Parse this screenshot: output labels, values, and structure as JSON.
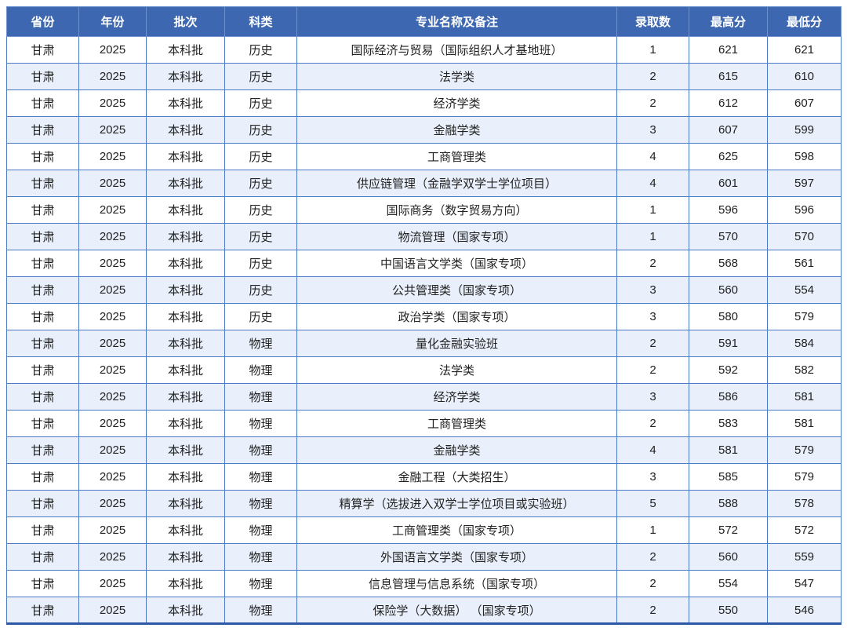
{
  "chart_data": {
    "type": "table",
    "title": "",
    "headers": [
      "省份",
      "年份",
      "批次",
      "科类",
      "专业名称及备注",
      "录取数",
      "最高分",
      "最低分"
    ],
    "rows": [
      [
        "甘肃",
        "2025",
        "本科批",
        "历史",
        "国际经济与贸易（国际组织人才基地班）",
        "1",
        "621",
        "621"
      ],
      [
        "甘肃",
        "2025",
        "本科批",
        "历史",
        "法学类",
        "2",
        "615",
        "610"
      ],
      [
        "甘肃",
        "2025",
        "本科批",
        "历史",
        "经济学类",
        "2",
        "612",
        "607"
      ],
      [
        "甘肃",
        "2025",
        "本科批",
        "历史",
        "金融学类",
        "3",
        "607",
        "599"
      ],
      [
        "甘肃",
        "2025",
        "本科批",
        "历史",
        "工商管理类",
        "4",
        "625",
        "598"
      ],
      [
        "甘肃",
        "2025",
        "本科批",
        "历史",
        "供应链管理（金融学双学士学位项目）",
        "4",
        "601",
        "597"
      ],
      [
        "甘肃",
        "2025",
        "本科批",
        "历史",
        "国际商务（数字贸易方向）",
        "1",
        "596",
        "596"
      ],
      [
        "甘肃",
        "2025",
        "本科批",
        "历史",
        "物流管理（国家专项）",
        "1",
        "570",
        "570"
      ],
      [
        "甘肃",
        "2025",
        "本科批",
        "历史",
        "中国语言文学类（国家专项）",
        "2",
        "568",
        "561"
      ],
      [
        "甘肃",
        "2025",
        "本科批",
        "历史",
        "公共管理类（国家专项）",
        "3",
        "560",
        "554"
      ],
      [
        "甘肃",
        "2025",
        "本科批",
        "历史",
        "政治学类（国家专项）",
        "3",
        "580",
        "579"
      ],
      [
        "甘肃",
        "2025",
        "本科批",
        "物理",
        "量化金融实验班",
        "2",
        "591",
        "584"
      ],
      [
        "甘肃",
        "2025",
        "本科批",
        "物理",
        "法学类",
        "2",
        "592",
        "582"
      ],
      [
        "甘肃",
        "2025",
        "本科批",
        "物理",
        "经济学类",
        "3",
        "586",
        "581"
      ],
      [
        "甘肃",
        "2025",
        "本科批",
        "物理",
        "工商管理类",
        "2",
        "583",
        "581"
      ],
      [
        "甘肃",
        "2025",
        "本科批",
        "物理",
        "金融学类",
        "4",
        "581",
        "579"
      ],
      [
        "甘肃",
        "2025",
        "本科批",
        "物理",
        "金融工程（大类招生）",
        "3",
        "585",
        "579"
      ],
      [
        "甘肃",
        "2025",
        "本科批",
        "物理",
        "精算学（选拔进入双学士学位项目或实验班）",
        "5",
        "588",
        "578"
      ],
      [
        "甘肃",
        "2025",
        "本科批",
        "物理",
        "工商管理类（国家专项）",
        "1",
        "572",
        "572"
      ],
      [
        "甘肃",
        "2025",
        "本科批",
        "物理",
        "外国语言文学类（国家专项）",
        "2",
        "560",
        "559"
      ],
      [
        "甘肃",
        "2025",
        "本科批",
        "物理",
        "信息管理与信息系统（国家专项）",
        "2",
        "554",
        "547"
      ],
      [
        "甘肃",
        "2025",
        "本科批",
        "物理",
        "保险学（大数据） （国家专项）",
        "2",
        "550",
        "546"
      ]
    ]
  },
  "colors": {
    "header_bg": "#3d68b1",
    "row_alt_bg": "#e9f0fb",
    "border": "#4d7ac5",
    "bottom_border": "#2e57a6",
    "header_text": "#ffffff",
    "cell_text": "#222222"
  }
}
